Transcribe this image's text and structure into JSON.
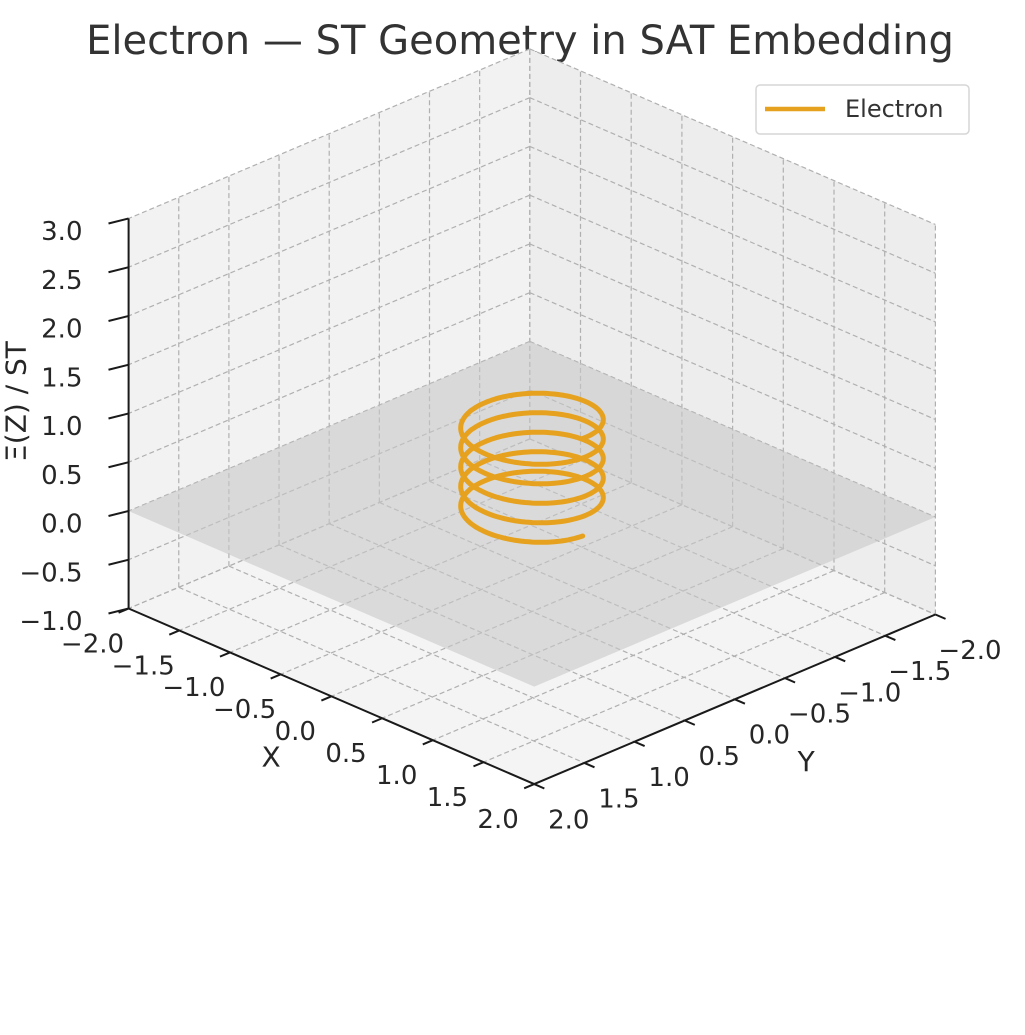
{
  "chart_data": {
    "type": "line3d",
    "title": "Electron — ST Geometry in SAT Embedding",
    "xlabel": "X",
    "ylabel": "Y",
    "zlabel": "Ξ(Z) / ST",
    "xlim": [
      -2.0,
      2.0
    ],
    "ylim": [
      -2.0,
      2.0
    ],
    "zlim": [
      -1.0,
      3.0
    ],
    "x_ticks": [
      "−2.0",
      "−1.5",
      "−1.0",
      "−0.5",
      "0.0",
      "0.5",
      "1.0",
      "1.5",
      "2.0"
    ],
    "y_ticks": [
      "−2.0",
      "−1.5",
      "−1.0",
      "−0.5",
      "0.0",
      "0.5",
      "1.0",
      "1.5",
      "2.0"
    ],
    "z_ticks": [
      "−1.0",
      "−0.5",
      "0.0",
      "0.5",
      "1.0",
      "1.5",
      "2.0",
      "2.5",
      "3.0"
    ],
    "legend": {
      "position": "upper right",
      "entries": [
        "Electron"
      ]
    },
    "grid": true,
    "plane": {
      "z": 0,
      "extent": [
        -2.0,
        2.0
      ],
      "color": "#c8c8c8"
    },
    "series": [
      {
        "name": "Electron",
        "color": "#e6a21e",
        "kind": "helix",
        "radius": 0.5,
        "z_start": 0.0,
        "z_end": 1.0,
        "turns": 5
      }
    ]
  }
}
